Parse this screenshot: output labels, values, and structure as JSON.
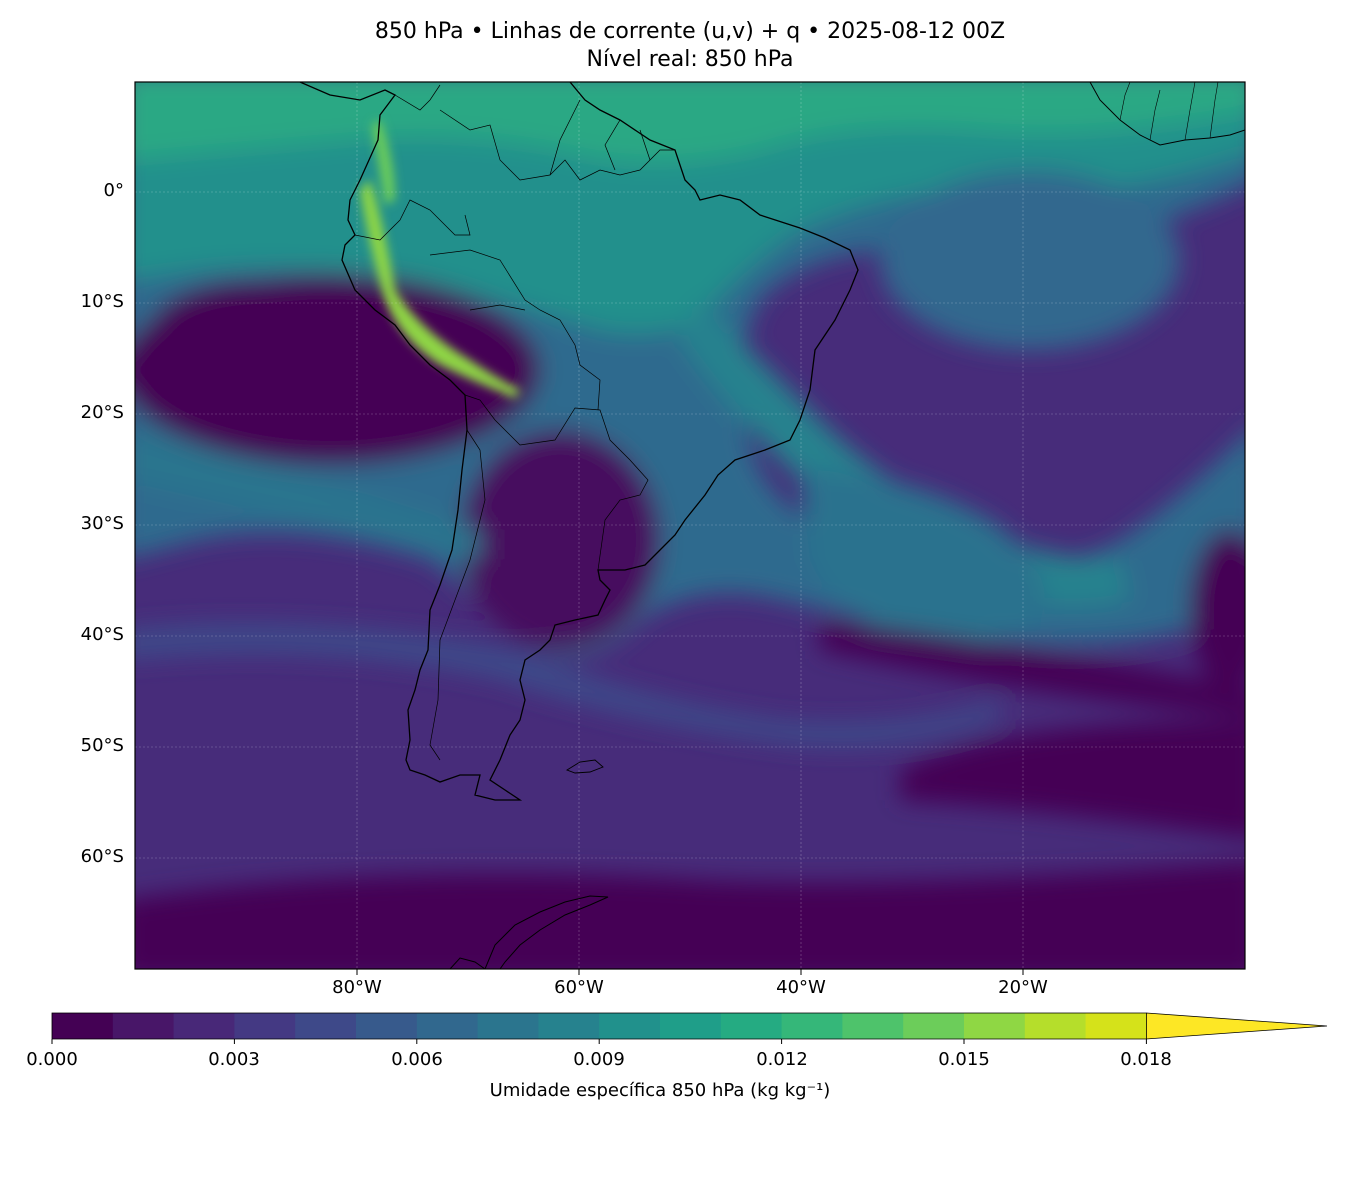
{
  "title": {
    "line1": "850 hPa • Linhas de corrente (u,v) + q • 2025-08-12 00Z",
    "line2": "Nível real: 850 hPa"
  },
  "map": {
    "lat_labels": [
      "0°",
      "10°S",
      "20°S",
      "30°S",
      "40°S",
      "50°S",
      "60°S"
    ],
    "lon_labels": [
      "80°W",
      "60°W",
      "40°W",
      "20°W"
    ],
    "extent": {
      "lon": [
        -100,
        0
      ],
      "lat": [
        -70,
        10
      ]
    },
    "gridlines": true,
    "coastline_color": "#000000"
  },
  "colorbar": {
    "label": "Umidade específica 850 hPa (kg kg⁻¹)",
    "ticks": [
      "0.000",
      "0.003",
      "0.006",
      "0.009",
      "0.012",
      "0.015",
      "0.018"
    ],
    "levels_min": 0.0,
    "levels_max": 0.02,
    "level_step": 0.001,
    "extend": "max",
    "colors": [
      "#440154",
      "#481668",
      "#482878",
      "#443983",
      "#3e4989",
      "#375a8c",
      "#31688e",
      "#2b758e",
      "#26828e",
      "#21918c",
      "#1f9e89",
      "#25ab82",
      "#35b779",
      "#4ec36b",
      "#6ccd5a",
      "#8fd744",
      "#b5de2b",
      "#d5e21a",
      "#fde725"
    ]
  }
}
